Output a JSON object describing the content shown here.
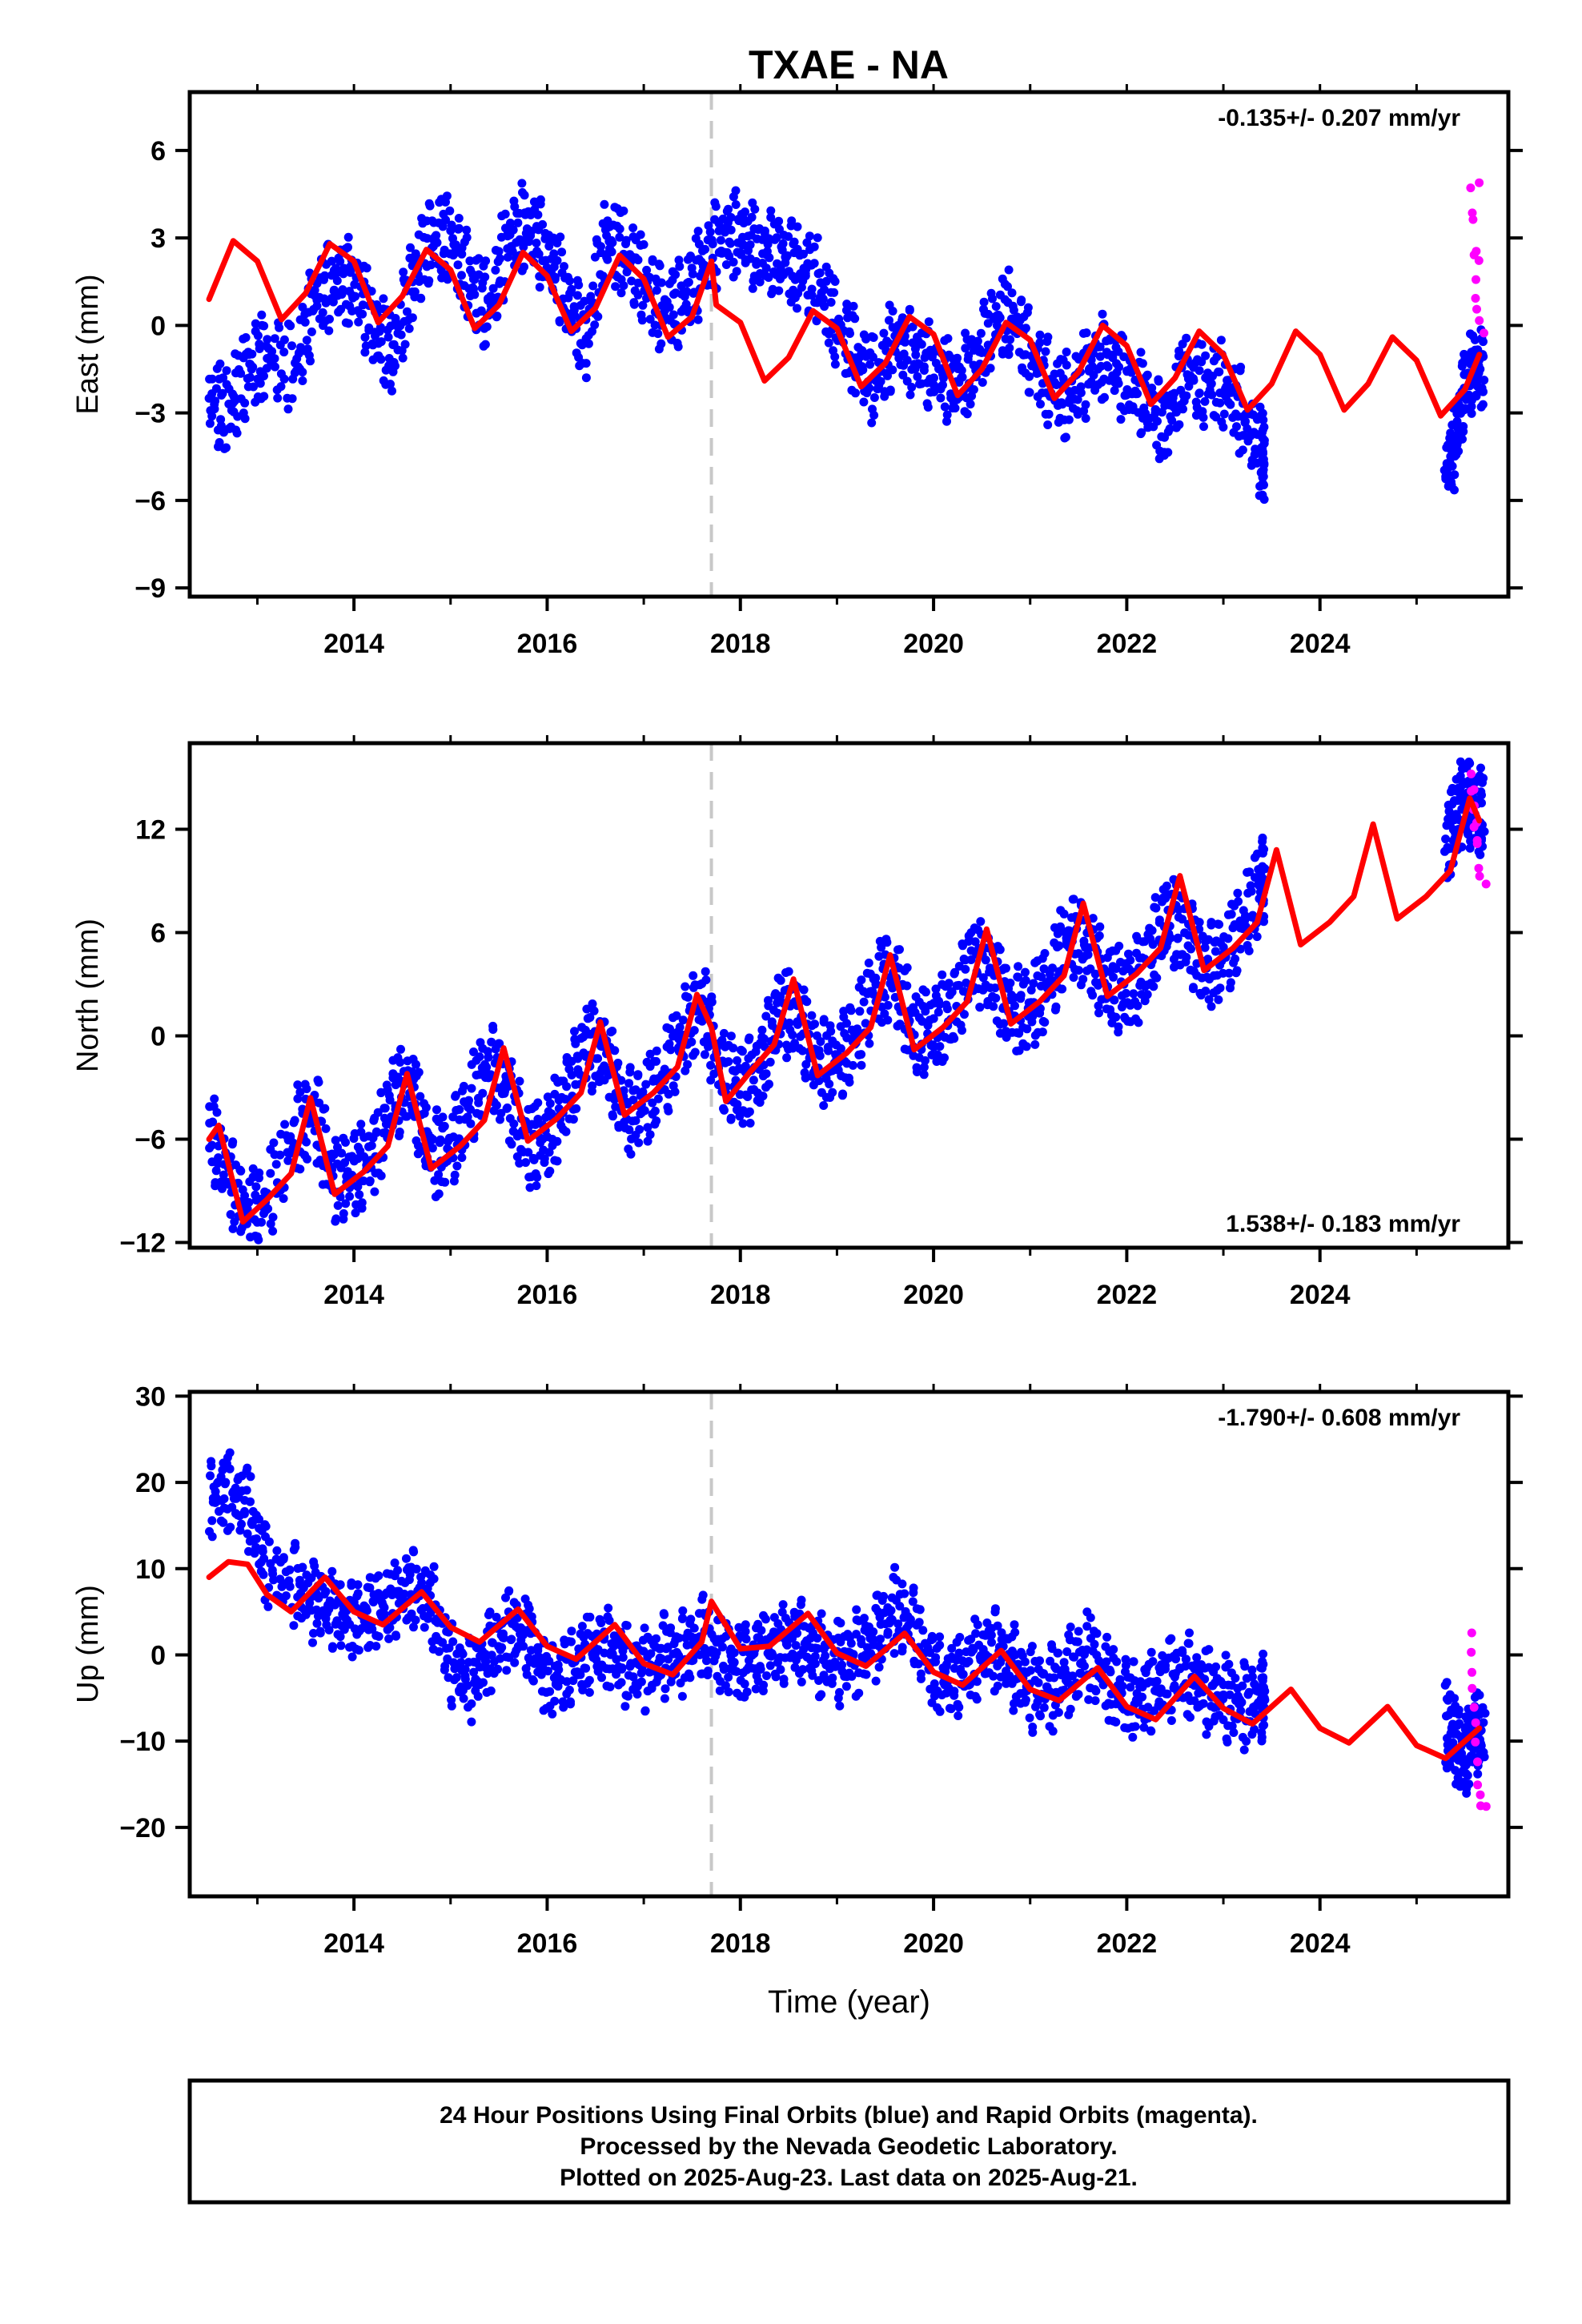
{
  "title": "TXAE - NA",
  "footer": {
    "lines": [
      "24 Hour Positions Using Final Orbits (blue) and Rapid Orbits (magenta).",
      "Processed by the Nevada Geodetic Laboratory.",
      "Plotted on 2025-Aug-23. Last data on 2025-Aug-21."
    ]
  },
  "colors": {
    "final_orbits": "#0000ff",
    "rapid_orbits": "#ff00ff",
    "model_fit": "#ff0000",
    "event_line": "#c8c8c8",
    "axis": "#000000"
  },
  "chart_data": [
    {
      "type": "scatter",
      "component": "east",
      "ylabel": "East (mm)",
      "xlabel": "",
      "xlim": [
        2012.3,
        2025.95
      ],
      "ylim": [
        -9.3,
        8
      ],
      "x_ticks": [
        2014,
        2016,
        2018,
        2020,
        2022,
        2024
      ],
      "x_tick_labels": [
        "2014",
        "2016",
        "2018",
        "2020",
        "2022",
        "2024"
      ],
      "y_ticks": [
        6,
        3,
        0,
        -3,
        -6,
        -9
      ],
      "y_tick_labels": [
        "6",
        "3",
        "0",
        "−3",
        "−6",
        "−9"
      ],
      "rate_label": "-0.135+/- 0.207 mm/yr",
      "rate_label_position": "top-right",
      "event_line_x": 2017.7,
      "series": [
        {
          "name": "Final Orbits",
          "style": "points",
          "color": "#0000ff",
          "x": [
            2012.5,
            2012.7,
            2012.9,
            2013.1,
            2013.4,
            2013.6,
            2013.8,
            2014.0,
            2014.2,
            2014.4,
            2014.6,
            2014.8,
            2015.0,
            2015.2,
            2015.4,
            2015.6,
            2015.8,
            2016.0,
            2016.2,
            2016.4,
            2016.6,
            2016.8,
            2017.0,
            2017.2,
            2017.4,
            2017.6,
            2017.8,
            2018.0,
            2018.2,
            2018.4,
            2018.6,
            2018.8,
            2019.0,
            2019.2,
            2019.4,
            2019.6,
            2019.8,
            2020.0,
            2020.2,
            2020.4,
            2020.6,
            2020.8,
            2021.0,
            2021.2,
            2021.4,
            2021.6,
            2021.8,
            2022.0,
            2022.2,
            2022.4,
            2022.6,
            2022.8,
            2023.0,
            2023.2,
            2023.4,
            2025.3,
            2025.4,
            2025.5,
            2025.6
          ],
          "y": [
            -2.5,
            -3.0,
            -1.5,
            -1.0,
            -1.5,
            1.0,
            1.5,
            1.5,
            0.0,
            -1.0,
            1.5,
            3.0,
            3.0,
            1.5,
            0.5,
            3.0,
            3.5,
            2.5,
            1.0,
            -0.5,
            3.0,
            2.5,
            1.5,
            0.5,
            0.8,
            2.0,
            3.0,
            3.2,
            2.5,
            2.5,
            2.0,
            1.5,
            0.0,
            -1.0,
            -2.0,
            -0.5,
            -1.0,
            -1.5,
            -2.0,
            -1.5,
            0.0,
            0.5,
            -1.0,
            -2.0,
            -2.5,
            -1.5,
            -1.0,
            -2.0,
            -2.5,
            -3.5,
            -1.5,
            -2.0,
            -2.0,
            -3.0,
            -4.5,
            -5.0,
            -4.0,
            -2.0,
            -1.5
          ]
        },
        {
          "name": "Rapid Orbits",
          "style": "points",
          "color": "#ff00ff",
          "x": [
            2025.56,
            2025.58,
            2025.6,
            2025.62,
            2025.64,
            2025.66
          ],
          "y": [
            4.5,
            3.5,
            1.5,
            0.5,
            4.8,
            0.0
          ]
        },
        {
          "name": "Model",
          "style": "line",
          "color": "#ff0000",
          "x": [
            2012.5,
            2012.75,
            2013.0,
            2013.25,
            2013.5,
            2013.75,
            2014.0,
            2014.25,
            2014.5,
            2014.75,
            2015.0,
            2015.25,
            2015.5,
            2015.75,
            2016.0,
            2016.25,
            2016.5,
            2016.75,
            2017.0,
            2017.25,
            2017.5,
            2017.7,
            2017.75,
            2018.0,
            2018.25,
            2018.5,
            2018.75,
            2019.0,
            2019.25,
            2019.5,
            2019.75,
            2020.0,
            2020.25,
            2020.5,
            2020.75,
            2021.0,
            2021.25,
            2021.5,
            2021.75,
            2022.0,
            2022.25,
            2022.5,
            2022.75,
            2023.0,
            2023.25,
            2023.5,
            2023.75,
            2024.0,
            2024.25,
            2024.5,
            2024.75,
            2025.0,
            2025.25,
            2025.5,
            2025.65
          ],
          "y": [
            0.9,
            2.9,
            2.2,
            0.2,
            1.1,
            2.8,
            2.2,
            0.1,
            1.0,
            2.6,
            1.9,
            -0.1,
            0.7,
            2.5,
            1.7,
            -0.2,
            0.6,
            2.4,
            1.6,
            -0.4,
            0.3,
            2.2,
            0.7,
            0.1,
            -1.9,
            -1.1,
            0.5,
            -0.1,
            -2.1,
            -1.3,
            0.3,
            -0.3,
            -2.4,
            -1.5,
            0.1,
            -0.5,
            -2.5,
            -1.6,
            0.0,
            -0.7,
            -2.7,
            -1.8,
            -0.2,
            -1.0,
            -2.9,
            -2.0,
            -0.2,
            -1.0,
            -2.9,
            -2.0,
            -0.4,
            -1.2,
            -3.1,
            -2.2,
            -1.0
          ]
        }
      ]
    },
    {
      "type": "scatter",
      "component": "north",
      "ylabel": "North (mm)",
      "xlabel": "",
      "xlim": [
        2012.3,
        2025.95
      ],
      "ylim": [
        -12.3,
        17
      ],
      "x_ticks": [
        2014,
        2016,
        2018,
        2020,
        2022,
        2024
      ],
      "x_tick_labels": [
        "2014",
        "2016",
        "2018",
        "2020",
        "2022",
        "2024"
      ],
      "y_ticks": [
        12,
        6,
        0,
        -6,
        -12
      ],
      "y_tick_labels": [
        "12",
        "6",
        "0",
        "−6",
        "−12"
      ],
      "rate_label": "1.538+/- 0.183 mm/yr",
      "rate_label_position": "bottom-right",
      "event_line_x": 2017.7,
      "series": [
        {
          "name": "Final Orbits",
          "style": "points",
          "color": "#0000ff",
          "x": [
            2012.5,
            2012.7,
            2012.9,
            2013.1,
            2013.4,
            2013.6,
            2013.8,
            2014.0,
            2014.2,
            2014.4,
            2014.6,
            2014.8,
            2015.0,
            2015.2,
            2015.4,
            2015.6,
            2015.8,
            2016.0,
            2016.2,
            2016.4,
            2016.6,
            2016.8,
            2017.0,
            2017.2,
            2017.4,
            2017.6,
            2017.8,
            2018.0,
            2018.2,
            2018.4,
            2018.6,
            2018.8,
            2019.0,
            2019.2,
            2019.4,
            2019.6,
            2019.8,
            2020.0,
            2020.2,
            2020.4,
            2020.6,
            2020.8,
            2021.0,
            2021.2,
            2021.4,
            2021.6,
            2021.8,
            2022.0,
            2022.2,
            2022.4,
            2022.6,
            2022.8,
            2023.0,
            2023.2,
            2023.4,
            2025.3,
            2025.4,
            2025.5,
            2025.6
          ],
          "y": [
            -5.5,
            -8.0,
            -10.5,
            -9.5,
            -5.5,
            -4.5,
            -8.5,
            -8.0,
            -7.0,
            -3.5,
            -3.0,
            -7.0,
            -6.5,
            -4.0,
            -1.5,
            -3.5,
            -6.5,
            -6.0,
            -3.5,
            -0.5,
            -1.0,
            -4.5,
            -4.0,
            -2.5,
            0.0,
            2.0,
            -2.0,
            -3.0,
            -2.0,
            1.5,
            1.0,
            -1.5,
            -1.5,
            0.0,
            3.0,
            3.5,
            0.0,
            0.5,
            1.5,
            4.5,
            3.5,
            1.5,
            1.5,
            3.0,
            6.0,
            5.0,
            3.0,
            2.5,
            4.0,
            7.0,
            6.0,
            4.0,
            4.5,
            6.5,
            9.0,
            11.0,
            12.5,
            14.0,
            13.0
          ]
        },
        {
          "name": "Rapid Orbits",
          "style": "points",
          "color": "#ff00ff",
          "x": [
            2025.56,
            2025.58,
            2025.6,
            2025.62,
            2025.64,
            2025.66
          ],
          "y": [
            15.0,
            14.0,
            13.0,
            12.0,
            11.0,
            9.0
          ]
        },
        {
          "name": "Model",
          "style": "line",
          "color": "#ff0000",
          "x": [
            2012.5,
            2012.6,
            2012.85,
            2013.1,
            2013.35,
            2013.55,
            2013.8,
            2014.1,
            2014.35,
            2014.55,
            2014.8,
            2015.1,
            2015.35,
            2015.55,
            2015.8,
            2016.1,
            2016.35,
            2016.55,
            2016.8,
            2017.1,
            2017.35,
            2017.55,
            2017.7,
            2017.85,
            2018.1,
            2018.35,
            2018.55,
            2018.8,
            2019.1,
            2019.35,
            2019.55,
            2019.8,
            2020.1,
            2020.35,
            2020.55,
            2020.8,
            2021.1,
            2021.35,
            2021.55,
            2021.8,
            2022.1,
            2022.35,
            2022.55,
            2022.8,
            2023.1,
            2023.35,
            2023.55,
            2023.8,
            2024.1,
            2024.35,
            2024.55,
            2024.8,
            2025.1,
            2025.35,
            2025.55,
            2025.65
          ],
          "y": [
            -6.0,
            -5.2,
            -10.8,
            -9.5,
            -8.0,
            -3.6,
            -9.2,
            -7.9,
            -6.4,
            -2.2,
            -7.7,
            -6.4,
            -4.9,
            -0.7,
            -6.1,
            -4.8,
            -3.3,
            0.8,
            -4.6,
            -3.3,
            -1.8,
            2.4,
            0.5,
            -3.8,
            -2.1,
            -0.5,
            3.3,
            -2.3,
            -1.0,
            0.5,
            4.7,
            -0.8,
            0.5,
            2.0,
            6.2,
            0.7,
            2.0,
            3.5,
            7.7,
            2.3,
            3.6,
            5.1,
            9.3,
            3.8,
            5.1,
            6.6,
            10.8,
            5.3,
            6.6,
            8.1,
            12.3,
            6.8,
            8.1,
            9.6,
            13.8,
            12.5
          ]
        }
      ]
    },
    {
      "type": "scatter",
      "component": "up",
      "ylabel": "Up (mm)",
      "xlabel": "Time (year)",
      "xlim": [
        2012.3,
        2025.95
      ],
      "ylim": [
        -28,
        30.5
      ],
      "x_ticks": [
        2014,
        2016,
        2018,
        2020,
        2022,
        2024
      ],
      "x_tick_labels": [
        "2014",
        "2016",
        "2018",
        "2020",
        "2022",
        "2024"
      ],
      "y_ticks": [
        30,
        20,
        10,
        0,
        -10,
        -20
      ],
      "y_tick_labels": [
        "30",
        "20",
        "10",
        "0",
        "−10",
        "−20"
      ],
      "rate_label": "-1.790+/- 0.608 mm/yr",
      "rate_label_position": "top-right",
      "event_line_x": 2017.7,
      "series": [
        {
          "name": "Final Orbits",
          "style": "points",
          "color": "#0000ff",
          "x": [
            2012.5,
            2012.7,
            2012.9,
            2013.1,
            2013.4,
            2013.6,
            2013.8,
            2014.0,
            2014.2,
            2014.4,
            2014.6,
            2014.8,
            2015.0,
            2015.2,
            2015.4,
            2015.6,
            2015.8,
            2016.0,
            2016.2,
            2016.4,
            2016.6,
            2016.8,
            2017.0,
            2017.2,
            2017.4,
            2017.6,
            2017.8,
            2018.0,
            2018.2,
            2018.4,
            2018.6,
            2018.8,
            2019.0,
            2019.2,
            2019.4,
            2019.6,
            2019.8,
            2020.0,
            2020.2,
            2020.4,
            2020.6,
            2020.8,
            2021.0,
            2021.2,
            2021.4,
            2021.6,
            2021.8,
            2022.0,
            2022.2,
            2022.4,
            2022.6,
            2022.8,
            2023.0,
            2023.2,
            2023.4,
            2025.3,
            2025.4,
            2025.5,
            2025.6
          ],
          "y": [
            18.0,
            19.0,
            17.0,
            10.0,
            8.0,
            6.0,
            5.0,
            4.0,
            5.0,
            6.0,
            8.0,
            6.0,
            -1.0,
            -3.0,
            0.0,
            3.0,
            2.0,
            -3.0,
            -2.0,
            0.0,
            1.0,
            -1.0,
            -2.0,
            0.0,
            0.0,
            2.0,
            0.0,
            -1.0,
            0.0,
            1.0,
            2.0,
            0.0,
            -1.0,
            0.0,
            2.0,
            5.0,
            3.0,
            -2.0,
            -3.0,
            -1.0,
            1.0,
            -1.0,
            -4.0,
            -4.0,
            -2.0,
            0.0,
            -3.0,
            -5.0,
            -5.0,
            -3.0,
            -2.0,
            -4.0,
            -5.0,
            -6.0,
            -5.0,
            -8.0,
            -10.0,
            -12.0,
            -9.0
          ]
        },
        {
          "name": "Rapid Orbits",
          "style": "points",
          "color": "#ff00ff",
          "x": [
            2025.56,
            2025.58,
            2025.6,
            2025.62,
            2025.64,
            2025.66
          ],
          "y": [
            2.5,
            -2.0,
            -6.0,
            -10.0,
            -15.0,
            -17.5
          ]
        },
        {
          "name": "Model",
          "style": "line",
          "color": "#ff0000",
          "x": [
            2012.5,
            2012.7,
            2012.9,
            2013.1,
            2013.35,
            2013.7,
            2014.0,
            2014.3,
            2014.7,
            2015.0,
            2015.3,
            2015.7,
            2016.0,
            2016.3,
            2016.7,
            2017.0,
            2017.3,
            2017.6,
            2017.7,
            2018.0,
            2018.3,
            2018.7,
            2019.0,
            2019.3,
            2019.7,
            2020.0,
            2020.3,
            2020.7,
            2021.0,
            2021.3,
            2021.7,
            2022.0,
            2022.3,
            2022.7,
            2023.0,
            2023.3,
            2023.7,
            2024.0,
            2024.3,
            2024.7,
            2025.0,
            2025.3,
            2025.65
          ],
          "y": [
            9.0,
            10.8,
            10.5,
            7.0,
            5.0,
            9.0,
            5.0,
            3.5,
            7.3,
            3.2,
            1.5,
            5.3,
            1.0,
            -0.5,
            3.5,
            -1.0,
            -2.3,
            1.5,
            6.2,
            0.7,
            1.0,
            4.8,
            0.2,
            -1.3,
            2.5,
            -2.0,
            -3.5,
            0.5,
            -4.0,
            -5.3,
            -1.5,
            -6.0,
            -7.5,
            -2.5,
            -6.2,
            -8.0,
            -4.0,
            -8.5,
            -10.2,
            -6.0,
            -10.5,
            -12.0,
            -8.5
          ]
        }
      ]
    }
  ]
}
